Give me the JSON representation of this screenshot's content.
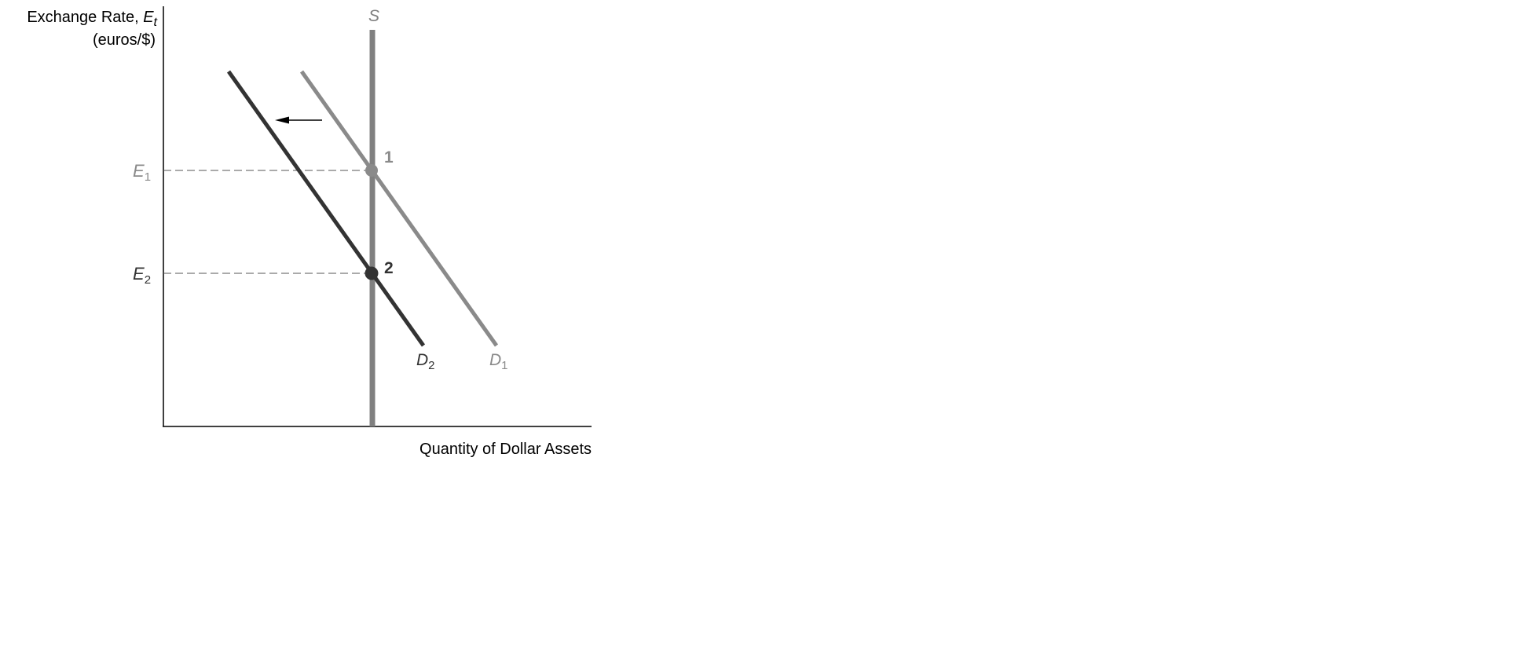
{
  "axes": {
    "y_title_main": "Exchange Rate, ",
    "y_title_symbol": "E",
    "y_title_subscript": "t",
    "y_title_units": "(euros/$)",
    "x_title": "Quantity of Dollar Assets"
  },
  "curves": {
    "supply": {
      "label": "S",
      "color": "#808080"
    },
    "demand_initial": {
      "label": "D",
      "subscript": "1",
      "color": "#8a8a8a"
    },
    "demand_new": {
      "label": "D",
      "subscript": "2",
      "color": "#333333"
    }
  },
  "levels": {
    "e1": {
      "symbol": "E",
      "subscript": "1",
      "color": "#8a8a8a"
    },
    "e2": {
      "symbol": "E",
      "subscript": "2",
      "color": "#333333"
    }
  },
  "points": {
    "p1": {
      "label": "1",
      "color": "#8a8a8a"
    },
    "p2": {
      "label": "2",
      "color": "#333333"
    }
  },
  "colors": {
    "axis": "#000000",
    "guide_dash": "#555555",
    "shift_arrow": "#000000"
  }
}
